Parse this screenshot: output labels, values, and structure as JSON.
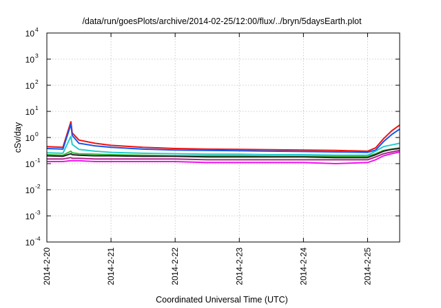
{
  "chart_data": {
    "type": "line",
    "title": "/data/run/goesPlots/archive/2014-02-25/12:00/flux/../bryn/5daysEarth.plot",
    "xlabel": "Coordinated Universal Time (UTC)",
    "ylabel": "cSv/day",
    "y_scale": "log",
    "ylim": [
      0.0001,
      10000
    ],
    "y_ticks": [
      {
        "base": "10",
        "exp": "-4"
      },
      {
        "base": "10",
        "exp": "-3"
      },
      {
        "base": "10",
        "exp": "-2"
      },
      {
        "base": "10",
        "exp": "-1"
      },
      {
        "base": "10",
        "exp": "0"
      },
      {
        "base": "10",
        "exp": "1"
      },
      {
        "base": "10",
        "exp": "2"
      },
      {
        "base": "10",
        "exp": "3"
      },
      {
        "base": "10",
        "exp": "4"
      }
    ],
    "xlim": [
      "2014-02-20T00:00",
      "2014-02-25T12:00"
    ],
    "x_ticks": [
      "2014-2-20",
      "2014-2-21",
      "2014-2-22",
      "2014-2-23",
      "2014-2-24",
      "2014-2-25"
    ],
    "grid": true,
    "legend": "none",
    "x": [
      "2014-02-20T00:00",
      "2014-02-20T06:00",
      "2014-02-20T09:00",
      "2014-02-20T09:30",
      "2014-02-20T12:00",
      "2014-02-20T18:00",
      "2014-02-21T00:00",
      "2014-02-21T12:00",
      "2014-02-22T00:00",
      "2014-02-22T12:00",
      "2014-02-23T00:00",
      "2014-02-23T12:00",
      "2014-02-24T00:00",
      "2014-02-24T12:00",
      "2014-02-25T00:00",
      "2014-02-25T03:00",
      "2014-02-25T06:00",
      "2014-02-25T09:00",
      "2014-02-25T12:00"
    ],
    "series": [
      {
        "color": "#ee1111",
        "values": [
          0.45,
          0.42,
          4.0,
          1.5,
          0.8,
          0.6,
          0.5,
          0.42,
          0.38,
          0.36,
          0.35,
          0.34,
          0.33,
          0.32,
          0.3,
          0.4,
          0.9,
          1.8,
          3.0
        ]
      },
      {
        "color": "#1155ee",
        "values": [
          0.38,
          0.36,
          3.2,
          1.2,
          0.6,
          0.48,
          0.42,
          0.36,
          0.33,
          0.32,
          0.31,
          0.3,
          0.29,
          0.28,
          0.27,
          0.33,
          0.7,
          1.3,
          2.1
        ]
      },
      {
        "color": "#22cccc",
        "values": [
          0.26,
          0.25,
          1.1,
          0.55,
          0.35,
          0.3,
          0.27,
          0.25,
          0.24,
          0.23,
          0.23,
          0.22,
          0.22,
          0.21,
          0.21,
          0.3,
          0.45,
          0.52,
          0.6
        ]
      },
      {
        "color": "#33bb33",
        "values": [
          0.22,
          0.21,
          0.3,
          0.26,
          0.24,
          0.23,
          0.22,
          0.21,
          0.2,
          0.2,
          0.2,
          0.19,
          0.19,
          0.19,
          0.19,
          0.24,
          0.32,
          0.36,
          0.4
        ]
      },
      {
        "color": "#222222",
        "values": [
          0.2,
          0.19,
          0.24,
          0.22,
          0.21,
          0.2,
          0.2,
          0.19,
          0.19,
          0.18,
          0.18,
          0.18,
          0.18,
          0.17,
          0.17,
          0.22,
          0.3,
          0.35,
          0.38
        ]
      },
      {
        "color": "#aa2288",
        "values": [
          0.15,
          0.15,
          0.17,
          0.16,
          0.16,
          0.15,
          0.15,
          0.15,
          0.15,
          0.14,
          0.14,
          0.14,
          0.14,
          0.14,
          0.14,
          0.18,
          0.24,
          0.28,
          0.32
        ]
      },
      {
        "color": "#ee11ee",
        "values": [
          0.12,
          0.12,
          0.13,
          0.13,
          0.13,
          0.12,
          0.12,
          0.12,
          0.12,
          0.11,
          0.11,
          0.11,
          0.11,
          0.1,
          0.11,
          0.14,
          0.2,
          0.24,
          0.28
        ]
      }
    ]
  }
}
